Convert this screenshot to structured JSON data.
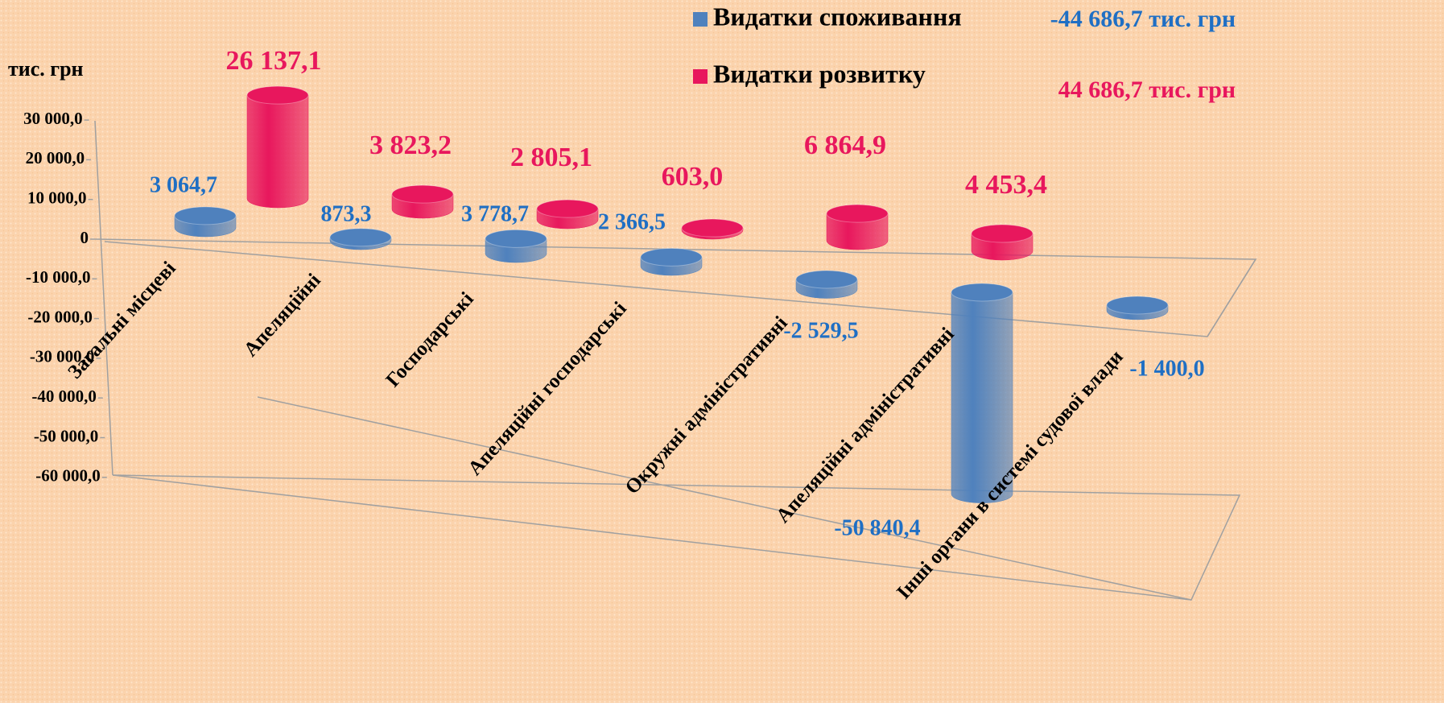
{
  "chart_data": {
    "type": "cylinder3d",
    "axis_label": "тис. грн",
    "categories": [
      "Загальні місцеві",
      "Апеляційні",
      "Господарські",
      "Апеляційні господарські",
      "Окружні адміністративні",
      "Апеляційні адміністративні",
      "Інші органи в системі судової влади"
    ],
    "series": [
      {
        "name": "Видатки споживання",
        "color": "#4f81bd",
        "label_color": "#1f6fc4",
        "total_label": "-44 686,7 тис. грн",
        "values": [
          3064.7,
          873.3,
          3778.7,
          2366.5,
          -2529.5,
          -50840.4,
          -1400.0
        ],
        "value_labels": [
          "3 064,7",
          "873,3",
          "3 778,7",
          "2 366,5",
          "-2 529,5",
          "-50 840,4",
          "-1 400,0"
        ]
      },
      {
        "name": "Видатки розвитку",
        "color": "#e8175d",
        "label_color": "#e8175d",
        "total_label": "44 686,7 тис. грн",
        "values": [
          26137.1,
          3823.2,
          2805.1,
          603.0,
          6864.9,
          4453.4,
          null
        ],
        "value_labels": [
          "26 137,1",
          "3 823,2",
          "2 805,1",
          "603,0",
          "6 864,9",
          "4 453,4",
          null
        ]
      }
    ],
    "ylim": [
      -60000,
      30000
    ],
    "yticks": [
      {
        "value": 30000,
        "label": "30 000,0"
      },
      {
        "value": 20000,
        "label": "20 000,0"
      },
      {
        "value": 10000,
        "label": "10 000,0"
      },
      0,
      {
        "value": -10000,
        "label": "-10 000,0"
      },
      {
        "value": -20000,
        "label": "-20 000,0"
      },
      {
        "value": -30000,
        "label": "-30 000,0"
      },
      {
        "value": -40000,
        "label": "-40 000,0"
      },
      {
        "value": -50000,
        "label": "-50 000,0"
      },
      {
        "value": -60000,
        "label": "-60 000,0"
      }
    ],
    "legend": "top-right"
  }
}
